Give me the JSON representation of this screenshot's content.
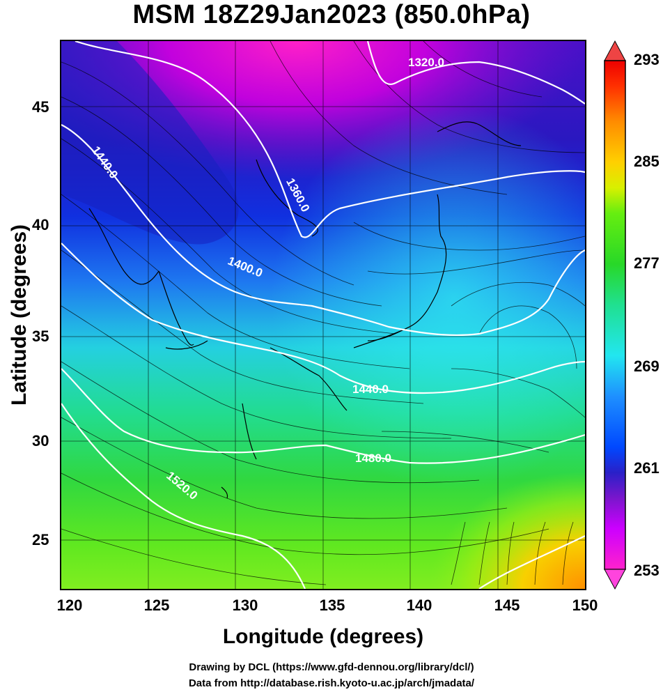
{
  "title": "MSM 18Z29Jan2023 (850.0hPa)",
  "x_axis": {
    "label": "Longitude (degrees)",
    "ticks": [
      "120",
      "125",
      "130",
      "135",
      "140",
      "145",
      "150"
    ],
    "range": [
      120,
      150
    ]
  },
  "y_axis": {
    "label": "Latitude  (degrees)",
    "ticks": [
      "25",
      "30",
      "35",
      "40",
      "45"
    ],
    "range": [
      22.4,
      47.6
    ]
  },
  "colorbar": {
    "ticks": [
      "253",
      "261",
      "269",
      "277",
      "285",
      "293"
    ],
    "range": [
      253,
      293
    ],
    "colors": [
      "#ff22cc",
      "#cc00ff",
      "#7a16cc",
      "#2a20c8",
      "#0048ff",
      "#1e90ff",
      "#22e6f0",
      "#20e090",
      "#28d828",
      "#66ee10",
      "#d8f000",
      "#ffd000",
      "#ff8c00",
      "#ff3000",
      "#ee0000"
    ]
  },
  "contour_labels": [
    "1320.0",
    "1360.0",
    "1400.0",
    "1440.0",
    "1440.0",
    "1480.0",
    "1520.0"
  ],
  "credits": [
    "Drawing by DCL (https://www.gfd-dennou.org/library/dcl/)",
    "Data from http://database.rish.kyoto-u.ac.jp/arch/jmadata/"
  ],
  "colors": {
    "contour": "#ffffff",
    "coast": "#000000",
    "streamline": "#000000"
  }
}
